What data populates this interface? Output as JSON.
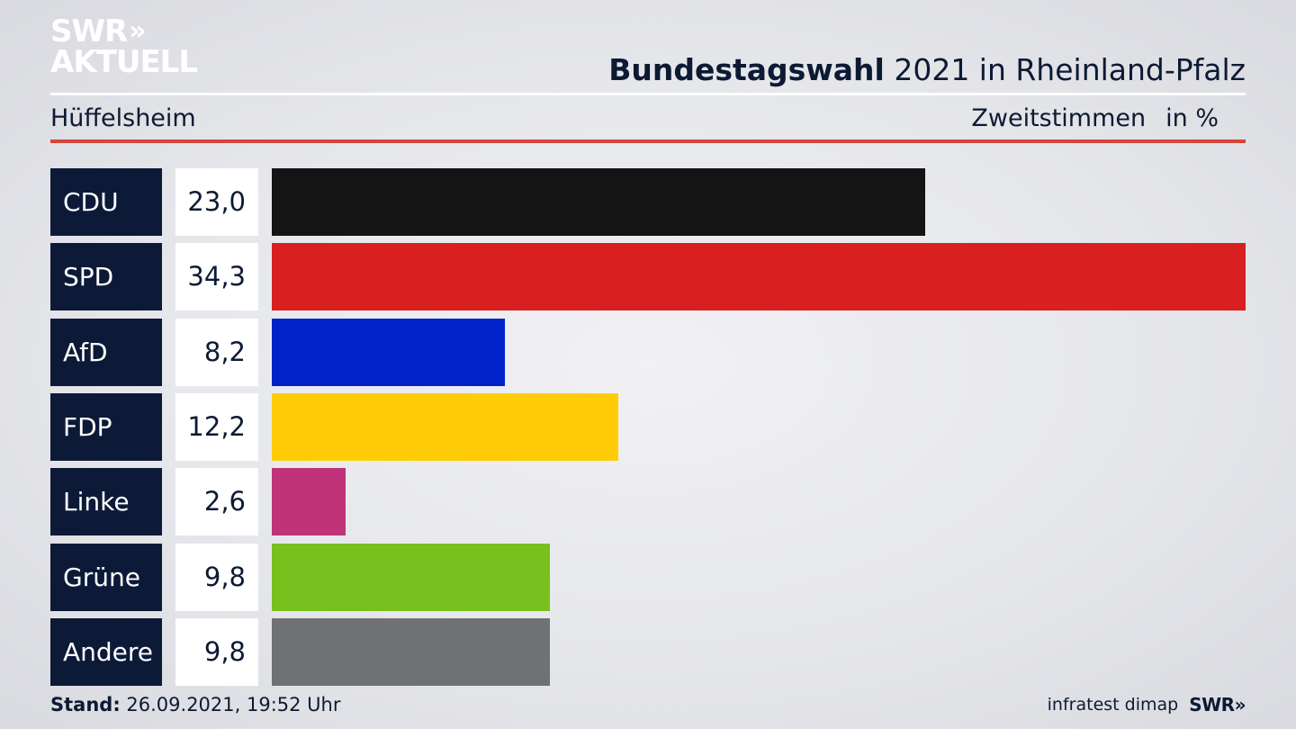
{
  "logo": {
    "line1": "SWR",
    "arrow": "»",
    "line2": "AKTUELL"
  },
  "header": {
    "title_bold": "Bundestagswahl",
    "title_rest": " 2021 in Rheinland-Pfalz",
    "region": "Hüffelsheim",
    "measure": "Zweitstimmen",
    "unit": "in %"
  },
  "footer": {
    "stand_label": "Stand:",
    "stand_value": " 26.09.2021, 19:52 Uhr",
    "source": "infratest dimap",
    "brand": "SWR»"
  },
  "chart_data": {
    "type": "bar",
    "orientation": "horizontal",
    "categories": [
      "CDU",
      "SPD",
      "AfD",
      "FDP",
      "Linke",
      "Grüne",
      "Andere"
    ],
    "values": [
      23.0,
      34.3,
      8.2,
      12.2,
      2.6,
      9.8,
      9.8
    ],
    "value_labels": [
      "23,0",
      "34,3",
      "8,2",
      "12,2",
      "2,6",
      "9,8",
      "9,8"
    ],
    "colors": [
      "#141414",
      "#d82020",
      "#0022c8",
      "#ffcc07",
      "#c03378",
      "#79bf1d",
      "#707174"
    ],
    "xlim": [
      0,
      34.3
    ],
    "grid": false
  }
}
